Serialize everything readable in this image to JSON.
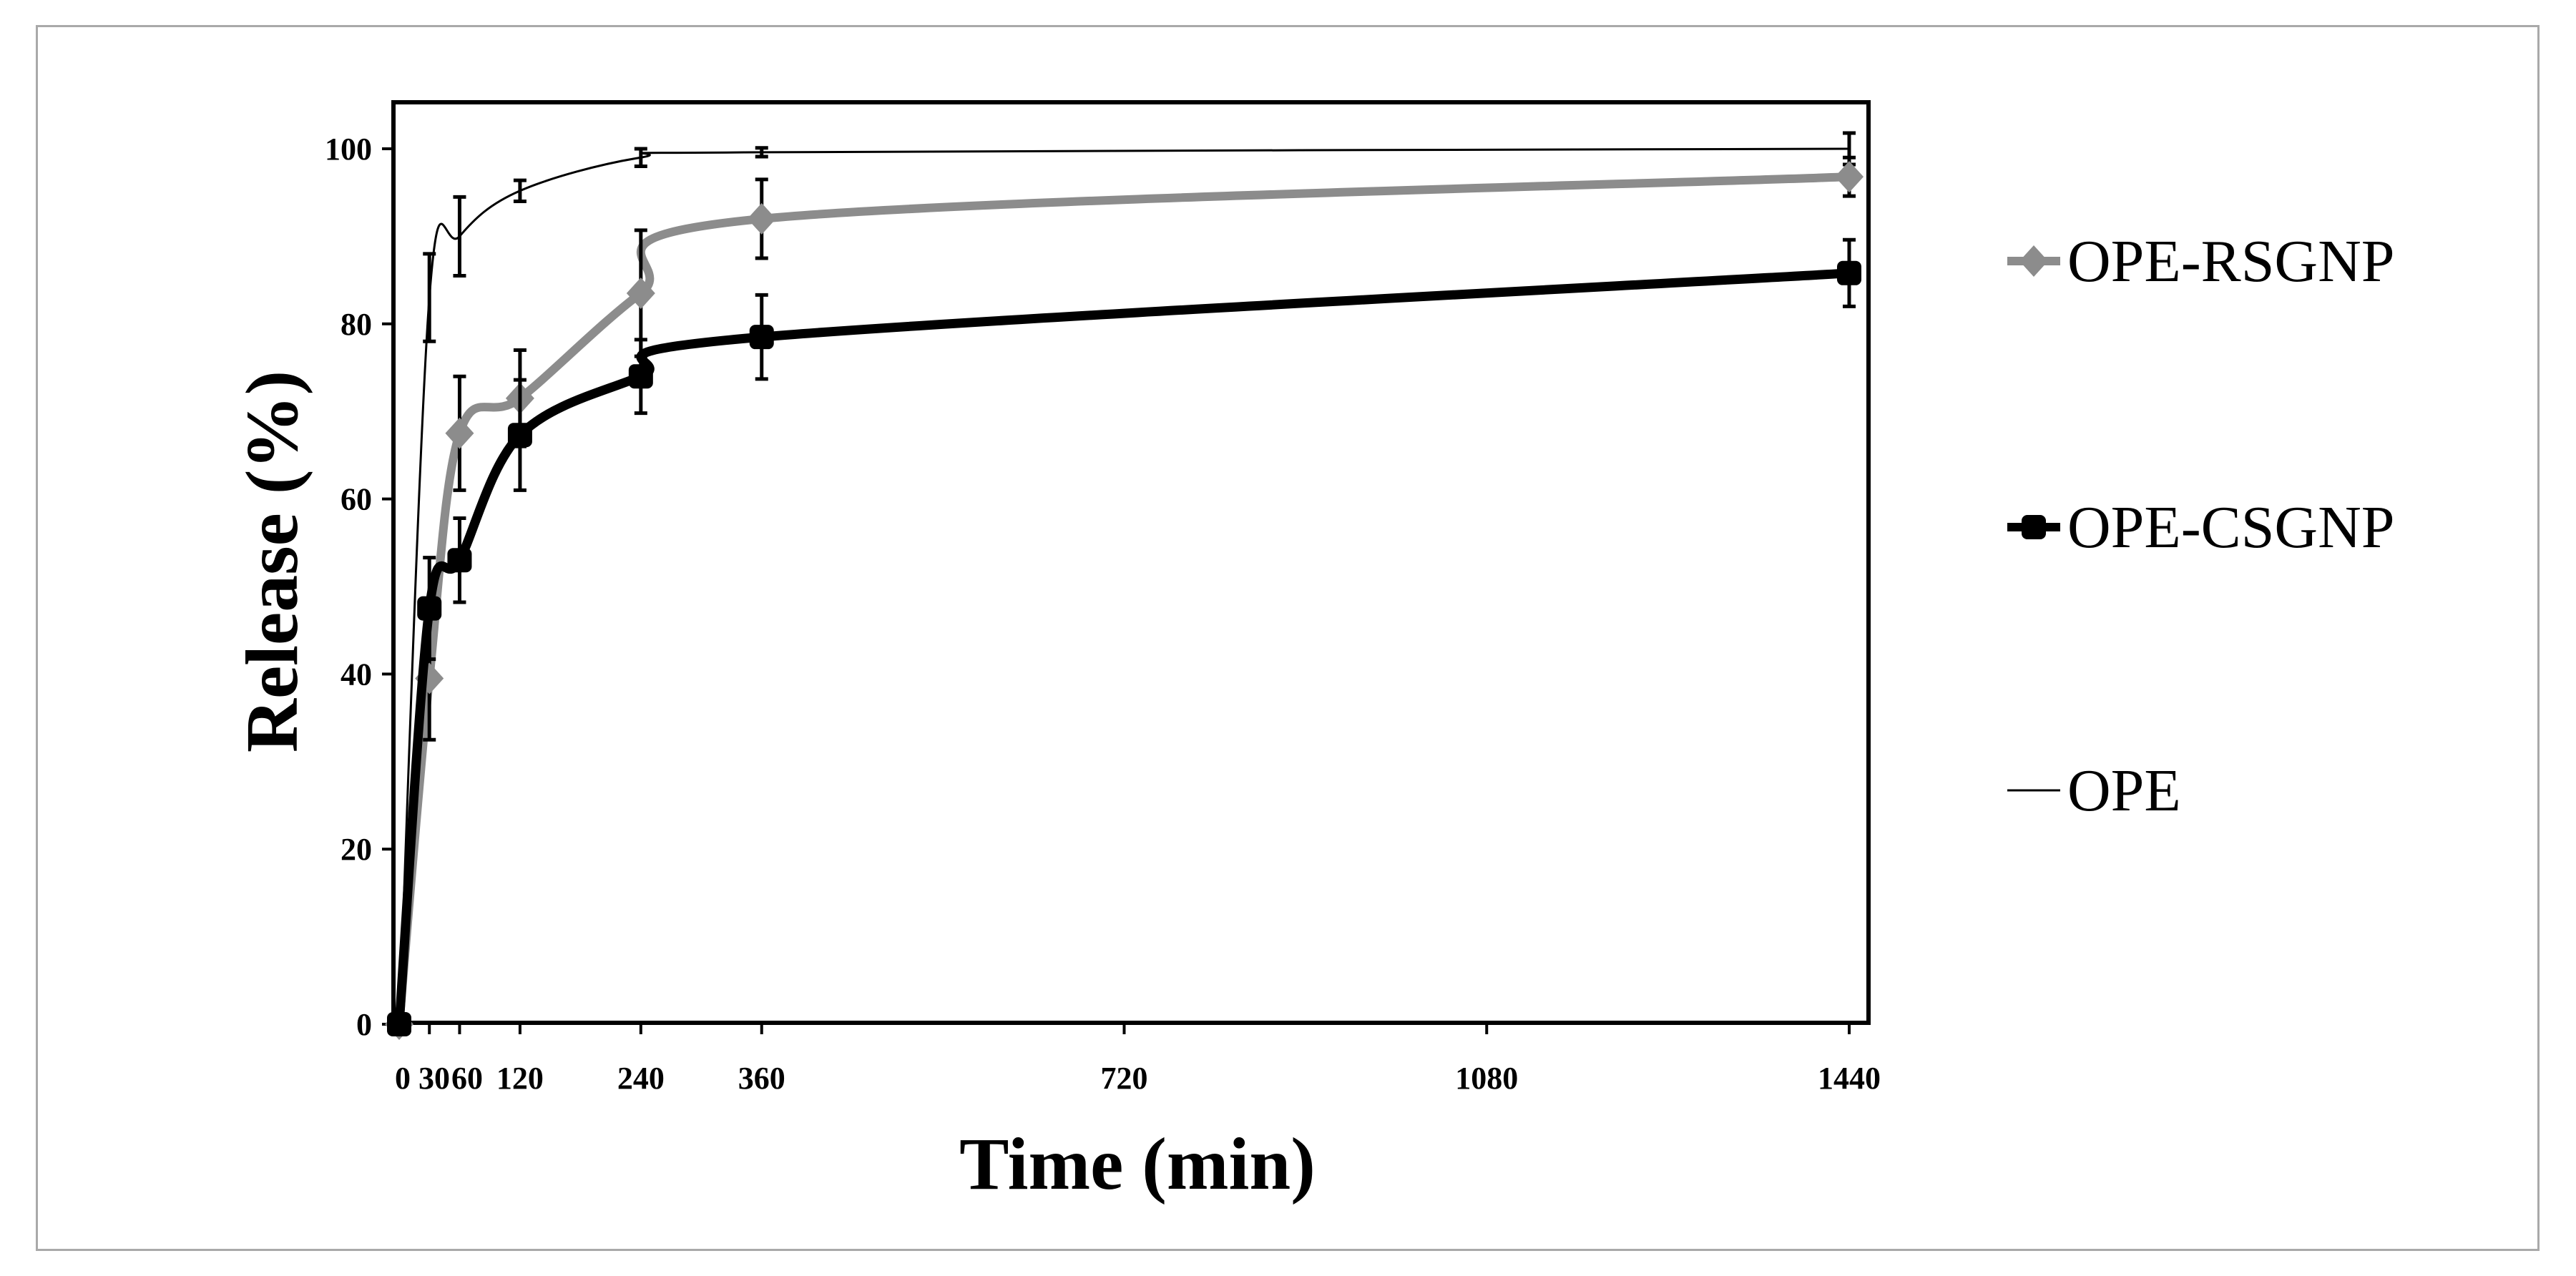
{
  "chart_data": {
    "type": "line",
    "xlabel": "Time (min)",
    "ylabel": "Release (%)",
    "xlim": [
      0,
      1470
    ],
    "ylim": [
      0,
      105
    ],
    "x_ticks": [
      0,
      30,
      60,
      120,
      240,
      360,
      720,
      1080,
      1440
    ],
    "x_tick_labels": [
      "0",
      "30",
      "60",
      "120",
      "240",
      "360",
      "720",
      "1080",
      "1440"
    ],
    "y_ticks": [
      0,
      20,
      40,
      60,
      80,
      100
    ],
    "y_tick_labels": [
      "0",
      "20",
      "40",
      "60",
      "80",
      "100"
    ],
    "legend_position": "right",
    "series": [
      {
        "name": "OPE-RSGNP",
        "color": "#8c8c8c",
        "marker": "diamond",
        "x": [
          0,
          30,
          60,
          120,
          240,
          360,
          1440
        ],
        "values": [
          0,
          39.5,
          67.5,
          71.5,
          83.5,
          92,
          96.8
        ],
        "errors": [
          0,
          7,
          6.5,
          5.5,
          7.2,
          4.5,
          2.2
        ]
      },
      {
        "name": "OPE-CSGNP",
        "color": "#000000",
        "marker": "square",
        "x": [
          0,
          30,
          60,
          120,
          240,
          360,
          1440
        ],
        "values": [
          0,
          47.5,
          53,
          67.3,
          74,
          78.5,
          85.8
        ],
        "errors": [
          0,
          5.8,
          4.8,
          6.3,
          4.2,
          4.8,
          3.8
        ]
      },
      {
        "name": "OPE",
        "color": "#000000",
        "marker": "none",
        "x": [
          0,
          30,
          60,
          120,
          240,
          360,
          1440
        ],
        "values": [
          0,
          83,
          90,
          95.2,
          99,
          99.6,
          100
        ],
        "errors": [
          0,
          5,
          4.5,
          1.2,
          1,
          0.5,
          1.8
        ]
      }
    ]
  }
}
